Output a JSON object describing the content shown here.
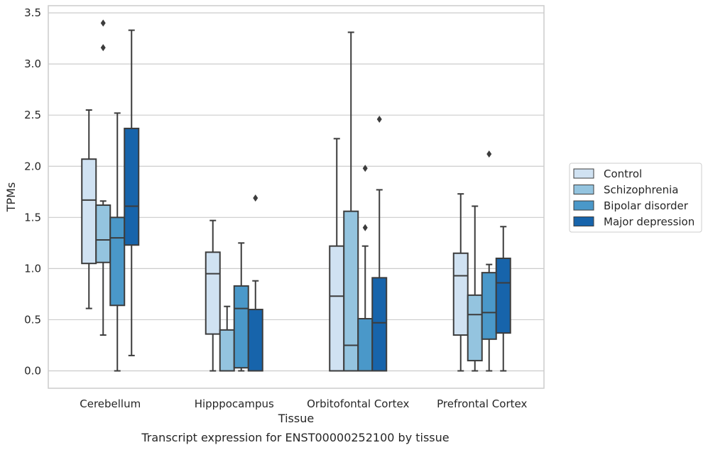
{
  "chart_data": {
    "type": "box",
    "title": "",
    "caption": "Transcript expression for ENST00000252100 by tissue",
    "xlabel": "Tissue",
    "ylabel": "TPMs",
    "ylim": [
      -0.17,
      3.57
    ],
    "yticks": [
      "0.0",
      "0.5",
      "1.0",
      "1.5",
      "2.0",
      "2.5",
      "3.0",
      "3.5"
    ],
    "grid": "horizontal",
    "legend_position": "right",
    "categories": [
      "Cerebellum",
      "Hipppocampus",
      "Orbitofontal Cortex",
      "Prefrontal Cortex"
    ],
    "series": [
      {
        "name": "Control",
        "color": "#d0e2f2",
        "boxes": [
          {
            "whislo": 0.61,
            "q1": 1.05,
            "med": 1.67,
            "q3": 2.07,
            "whishi": 2.55,
            "fliers": []
          },
          {
            "whislo": 0.0,
            "q1": 0.36,
            "med": 0.95,
            "q3": 1.16,
            "whishi": 1.47,
            "fliers": []
          },
          {
            "whislo": 0.0,
            "q1": 0.0,
            "med": 0.73,
            "q3": 1.22,
            "whishi": 2.27,
            "fliers": []
          },
          {
            "whislo": 0.0,
            "q1": 0.35,
            "med": 0.93,
            "q3": 1.15,
            "whishi": 1.73,
            "fliers": []
          }
        ]
      },
      {
        "name": "Schizophrenia",
        "color": "#94c4df",
        "boxes": [
          {
            "whislo": 0.35,
            "q1": 1.06,
            "med": 1.28,
            "q3": 1.62,
            "whishi": 1.66,
            "fliers": [
              3.4,
              3.16
            ]
          },
          {
            "whislo": 0.0,
            "q1": 0.0,
            "med": 0.0,
            "q3": 0.4,
            "whishi": 0.63,
            "fliers": []
          },
          {
            "whislo": 0.0,
            "q1": 0.0,
            "med": 0.25,
            "q3": 1.56,
            "whishi": 3.31,
            "fliers": []
          },
          {
            "whislo": 0.0,
            "q1": 0.1,
            "med": 0.55,
            "q3": 0.74,
            "whishi": 1.61,
            "fliers": []
          }
        ]
      },
      {
        "name": "Bipolar disorder",
        "color": "#4a98c9",
        "boxes": [
          {
            "whislo": 0.0,
            "q1": 0.64,
            "med": 1.3,
            "q3": 1.5,
            "whishi": 2.52,
            "fliers": []
          },
          {
            "whislo": 0.0,
            "q1": 0.03,
            "med": 0.61,
            "q3": 0.83,
            "whishi": 1.25,
            "fliers": []
          },
          {
            "whislo": 0.0,
            "q1": 0.0,
            "med": 0.0,
            "q3": 0.51,
            "whishi": 1.22,
            "fliers": [
              1.98,
              1.4
            ]
          },
          {
            "whislo": 0.0,
            "q1": 0.31,
            "med": 0.57,
            "q3": 0.96,
            "whishi": 1.04,
            "fliers": [
              2.12
            ]
          }
        ]
      },
      {
        "name": "Major depression",
        "color": "#1764ab",
        "boxes": [
          {
            "whislo": 0.15,
            "q1": 1.23,
            "med": 1.61,
            "q3": 2.37,
            "whishi": 3.33,
            "fliers": []
          },
          {
            "whislo": 0.0,
            "q1": 0.0,
            "med": 0.0,
            "q3": 0.6,
            "whishi": 0.88,
            "fliers": [
              1.69
            ]
          },
          {
            "whislo": 0.0,
            "q1": 0.0,
            "med": 0.47,
            "q3": 0.91,
            "whishi": 1.77,
            "fliers": [
              2.46
            ]
          },
          {
            "whislo": 0.0,
            "q1": 0.37,
            "med": 0.86,
            "q3": 1.1,
            "whishi": 1.41,
            "fliers": []
          }
        ]
      }
    ]
  }
}
